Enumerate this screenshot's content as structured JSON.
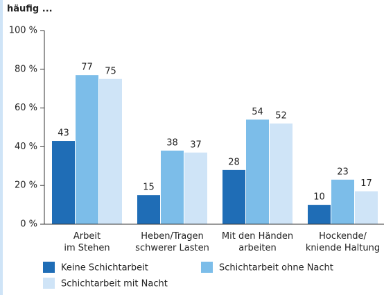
{
  "chart_data": {
    "type": "bar",
    "title": "häufig ...",
    "categories": [
      "Arbeit\nim Stehen",
      "Heben/Tragen\nschwerer Lasten",
      "Mit den Händen\narbeiten",
      "Hockende/\nkniende Haltung"
    ],
    "series": [
      {
        "name": "Keine Schichtarbeit",
        "color": "#1f6db6",
        "values": [
          43,
          15,
          28,
          10
        ]
      },
      {
        "name": "Schichtarbeit ohne Nacht",
        "color": "#7cbde9",
        "values": [
          77,
          38,
          54,
          23
        ]
      },
      {
        "name": "Schichtarbeit mit Nacht",
        "color": "#cfe4f7",
        "values": [
          75,
          37,
          52,
          17
        ]
      }
    ],
    "ylim": [
      0,
      100
    ],
    "yticks": [
      {
        "value": 0,
        "label": "0 %"
      },
      {
        "value": 20,
        "label": "20 %"
      },
      {
        "value": 40,
        "label": "40 %"
      },
      {
        "value": 60,
        "label": "60 %"
      },
      {
        "value": 80,
        "label": "80 %"
      },
      {
        "value": 100,
        "label": "100 %"
      }
    ]
  }
}
